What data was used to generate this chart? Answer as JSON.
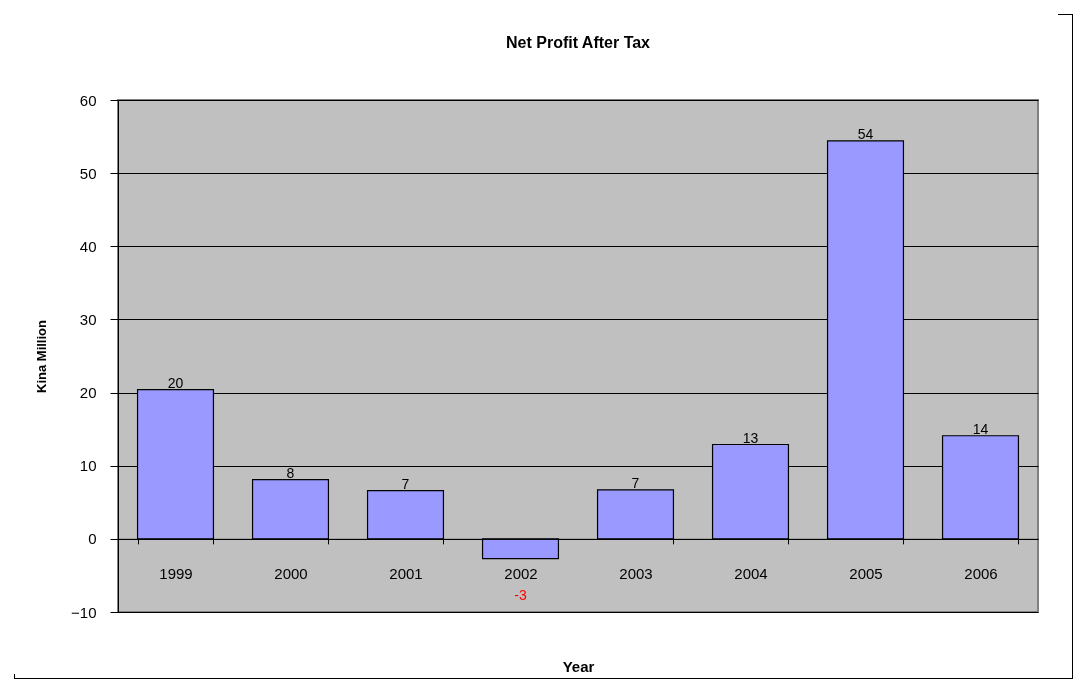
{
  "chart_data": {
    "type": "bar",
    "title": "Net Profit After Tax",
    "xlabel": "Year",
    "ylabel": "Kina Million",
    "categories": [
      "1999",
      "2000",
      "2001",
      "2002",
      "2003",
      "2004",
      "2005",
      "2006"
    ],
    "values": [
      20.4,
      8.1,
      6.6,
      -2.7,
      6.7,
      12.9,
      54.4,
      14.1
    ],
    "value_labels": [
      "20",
      "8",
      "7",
      "-3",
      "7",
      "13",
      "54",
      "14"
    ],
    "color": "#9999ff",
    "ylim": [
      -10,
      60
    ],
    "yticks": [
      -10,
      0,
      10,
      20,
      30,
      40,
      50,
      60
    ],
    "grid": "y"
  }
}
